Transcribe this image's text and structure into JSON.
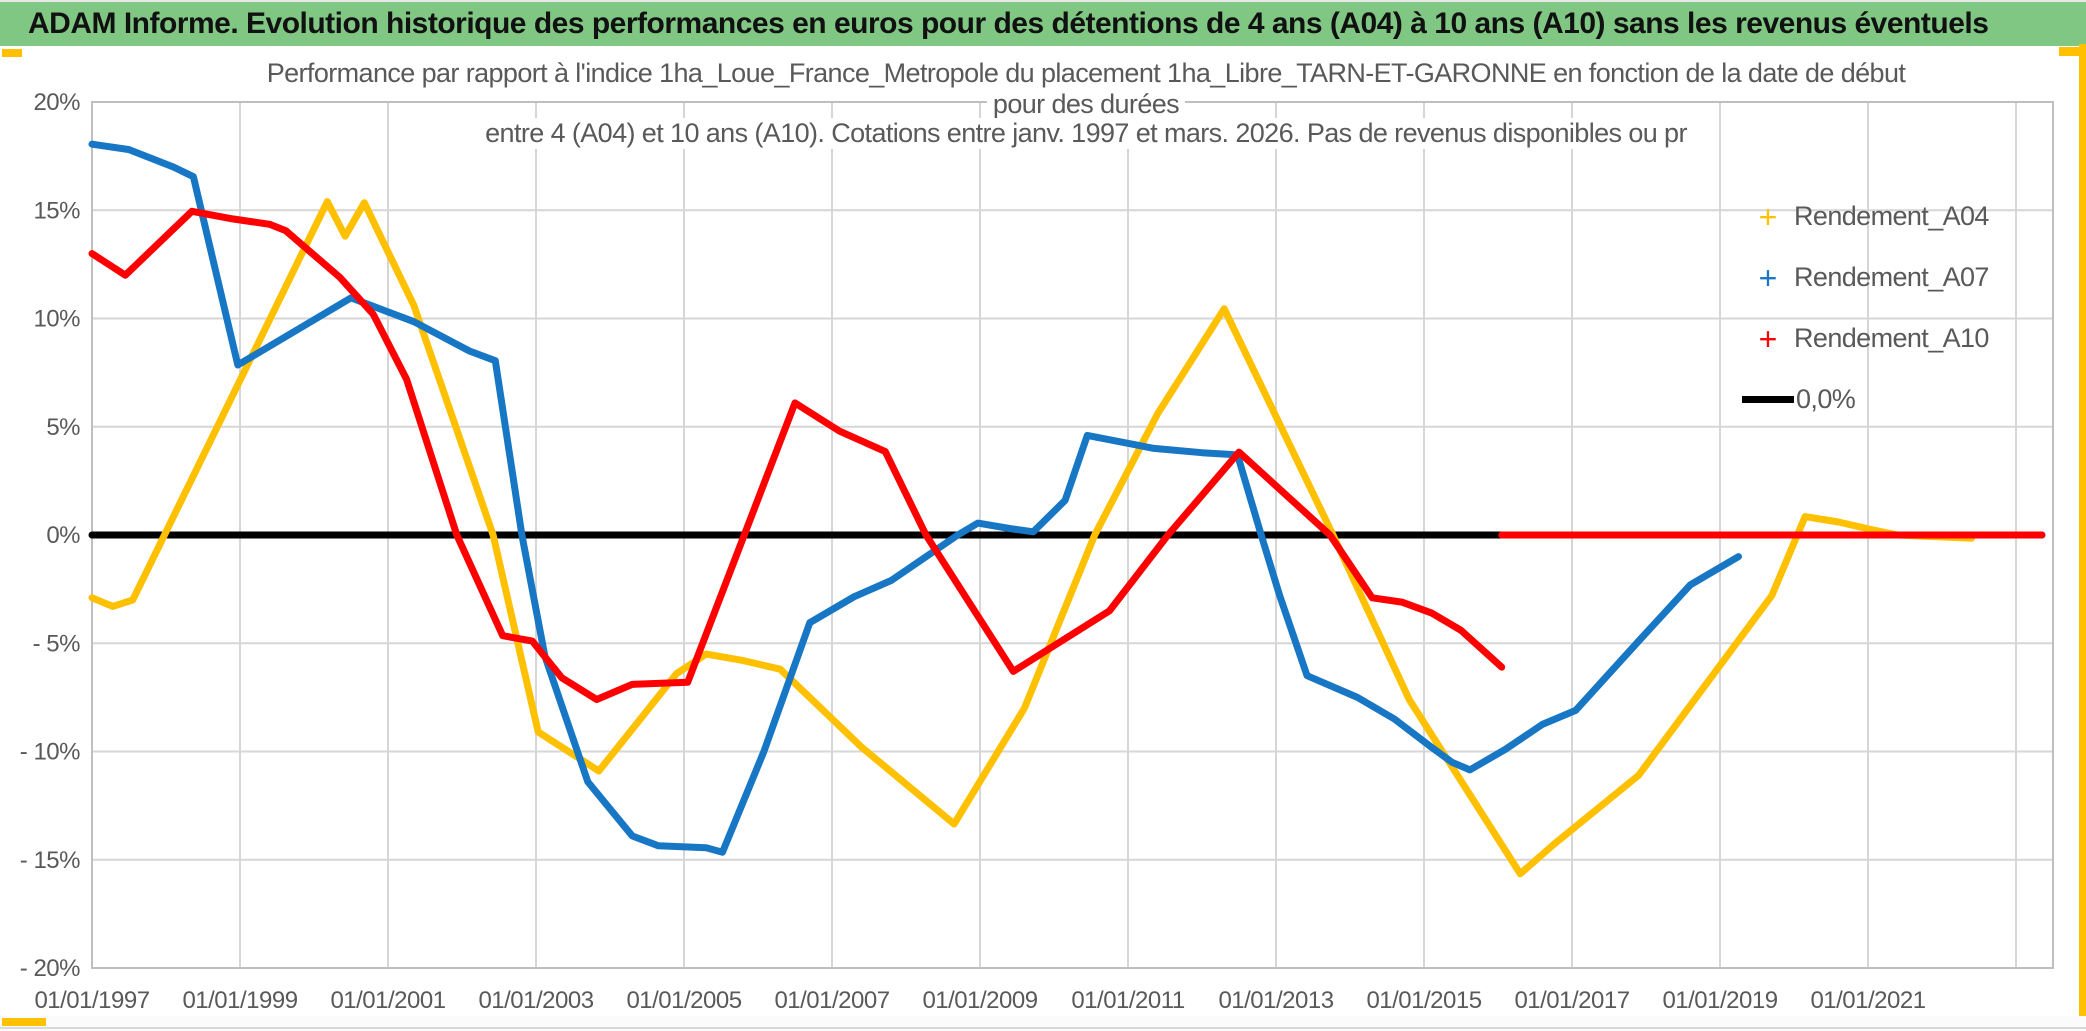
{
  "header": {
    "title": "ADAM Informe. Evolution historique des performances en euros pour des détentions de 4 ans (A04) à 10 ans (A10) sans les revenus éventuels",
    "bg_color": "#81C784",
    "text_color": "#111111"
  },
  "frame": {
    "accent_color": "#FFC000",
    "bottom_line_color": "#D9D9D9"
  },
  "chart": {
    "title_lines": [
      "Performance par rapport à l'indice 1ha_Loue_France_Metropole  du placement 1ha_Libre_TARN-ET-GARONNE en fonction de la date de début",
      "pour des durées",
      "entre 4 (A04) et 10 ans (A10). Cotations entre janv. 1997 et mars. 2026. Pas de revenus disponibles ou pr"
    ],
    "text_color": "#595959",
    "gridline_color": "#D6D6D6",
    "border_color": "#BFBFBF"
  },
  "chart_data": {
    "type": "line",
    "title": "Performance par rapport à l'indice 1ha_Loue_France_Metropole du placement 1ha_Libre_TARN-ET-GARONNE en fonction de la date de début pour des durées entre 4 (A04) et 10 ans (A10). Cotations entre janv. 1997 et mars. 2026. Pas de revenus disponibles ou pr",
    "xlabel": "",
    "ylabel": "",
    "grid": true,
    "legend_position": "right",
    "x_axis": {
      "unit": "decimal_year_start_date",
      "range": [
        1997.0,
        2023.5
      ],
      "tick_years": [
        1997,
        1999,
        2001,
        2003,
        2005,
        2007,
        2009,
        2011,
        2013,
        2015,
        2017,
        2019,
        2021
      ],
      "tick_labels": [
        "01/01/1997",
        "01/01/1999",
        "01/01/2001",
        "01/01/2003",
        "01/01/2005",
        "01/01/2007",
        "01/01/2009",
        "01/01/2011",
        "01/01/2013",
        "01/01/2015",
        "01/01/2017",
        "01/01/2019",
        "01/01/2021"
      ],
      "gridline_years": [
        1999,
        2001,
        2003,
        2005,
        2007,
        2009,
        2011,
        2013,
        2015,
        2017,
        2019,
        2021,
        2023
      ]
    },
    "y_axis": {
      "unit": "%",
      "range": [
        -20,
        20
      ],
      "tick_values": [
        20,
        15,
        10,
        5,
        0,
        -5,
        -10,
        -15,
        -20
      ],
      "tick_labels": [
        "20%",
        "15%",
        "10%",
        "5%",
        "0%",
        "- 5%",
        "- 10%",
        "- 15%",
        "- 20%"
      ]
    },
    "series": [
      {
        "name": "Rendement_A04",
        "color": "#FFC000",
        "marker": "plus",
        "segments": [
          [
            [
              1997.0,
              -2.9
            ],
            [
              1997.28,
              -3.3
            ],
            [
              1997.55,
              -3.0
            ],
            [
              2000.18,
              15.4
            ],
            [
              2000.42,
              13.8
            ],
            [
              2000.68,
              15.35
            ],
            [
              2001.35,
              10.6
            ],
            [
              2002.42,
              0.0
            ],
            [
              2003.03,
              -9.1
            ],
            [
              2003.85,
              -10.9
            ],
            [
              2004.9,
              -6.4
            ],
            [
              2005.3,
              -5.5
            ],
            [
              2005.8,
              -5.8
            ],
            [
              2006.3,
              -6.2
            ],
            [
              2007.4,
              -9.8
            ],
            [
              2008.65,
              -13.35
            ],
            [
              2009.6,
              -8.0
            ],
            [
              2010.55,
              0.0
            ],
            [
              2011.4,
              5.6
            ],
            [
              2012.3,
              10.45
            ],
            [
              2013.77,
              0.0
            ],
            [
              2014.8,
              -7.6
            ],
            [
              2016.3,
              -15.65
            ],
            [
              2016.75,
              -14.3
            ],
            [
              2017.9,
              -11.1
            ],
            [
              2019.2,
              -5.1
            ],
            [
              2019.7,
              -2.8
            ],
            [
              2020.15,
              0.85
            ],
            [
              2020.6,
              0.6
            ],
            [
              2021.05,
              0.25
            ],
            [
              2021.4,
              0.0
            ],
            [
              2022.4,
              -0.15
            ]
          ]
        ]
      },
      {
        "name": "Rendement_A07",
        "color": "#1777C4",
        "marker": "plus",
        "segments": [
          [
            [
              1997.0,
              18.05
            ],
            [
              1997.5,
              17.8
            ],
            [
              1998.1,
              17.0
            ],
            [
              1998.37,
              16.55
            ],
            [
              1998.97,
              7.85
            ],
            [
              2000.5,
              10.95
            ],
            [
              2001.35,
              9.85
            ],
            [
              2002.1,
              8.5
            ],
            [
              2002.45,
              8.05
            ],
            [
              2002.81,
              0.0
            ],
            [
              2003.12,
              -5.6
            ],
            [
              2003.7,
              -11.4
            ],
            [
              2004.3,
              -13.9
            ],
            [
              2004.65,
              -14.35
            ],
            [
              2005.3,
              -14.45
            ],
            [
              2005.52,
              -14.65
            ],
            [
              2006.08,
              -10.0
            ],
            [
              2006.7,
              -4.05
            ],
            [
              2007.3,
              -2.85
            ],
            [
              2007.8,
              -2.1
            ],
            [
              2008.7,
              0.0
            ],
            [
              2008.97,
              0.55
            ],
            [
              2009.4,
              0.3
            ],
            [
              2009.72,
              0.15
            ],
            [
              2010.15,
              1.6
            ],
            [
              2010.45,
              4.6
            ],
            [
              2011.35,
              4.0
            ],
            [
              2012.0,
              3.8
            ],
            [
              2012.48,
              3.7
            ],
            [
              2012.8,
              0.0
            ],
            [
              2013.05,
              -2.8
            ],
            [
              2013.42,
              -6.5
            ],
            [
              2014.1,
              -7.5
            ],
            [
              2014.6,
              -8.5
            ],
            [
              2015.1,
              -9.8
            ],
            [
              2015.38,
              -10.5
            ],
            [
              2015.62,
              -10.85
            ],
            [
              2016.1,
              -9.9
            ],
            [
              2016.6,
              -8.75
            ],
            [
              2017.05,
              -8.1
            ],
            [
              2017.9,
              -4.9
            ],
            [
              2018.6,
              -2.3
            ],
            [
              2019.25,
              -1.0
            ]
          ]
        ]
      },
      {
        "name": "Rendement_A10",
        "color": "#FF0000",
        "marker": "plus",
        "segments": [
          [
            [
              1997.0,
              13.0
            ],
            [
              1997.45,
              12.0
            ],
            [
              1998.35,
              14.95
            ],
            [
              1998.9,
              14.6
            ],
            [
              1999.4,
              14.35
            ],
            [
              1999.62,
              14.05
            ],
            [
              2000.35,
              11.9
            ],
            [
              2000.8,
              10.2
            ],
            [
              2001.25,
              7.2
            ],
            [
              2001.93,
              0.0
            ],
            [
              2002.55,
              -4.65
            ],
            [
              2002.95,
              -4.9
            ],
            [
              2003.35,
              -6.6
            ],
            [
              2003.82,
              -7.6
            ],
            [
              2004.3,
              -6.9
            ],
            [
              2005.05,
              -6.8
            ],
            [
              2006.5,
              6.1
            ],
            [
              2007.1,
              4.8
            ],
            [
              2007.72,
              3.85
            ],
            [
              2008.27,
              0.0
            ],
            [
              2009.45,
              -6.3
            ],
            [
              2010.1,
              -4.9
            ],
            [
              2010.75,
              -3.5
            ],
            [
              2011.54,
              0.0
            ],
            [
              2012.5,
              3.83
            ],
            [
              2013.73,
              0.0
            ],
            [
              2014.3,
              -2.9
            ],
            [
              2014.7,
              -3.1
            ],
            [
              2015.1,
              -3.6
            ],
            [
              2015.5,
              -4.4
            ],
            [
              2016.05,
              -6.1
            ]
          ],
          [
            [
              2016.05,
              0.0
            ],
            [
              2023.35,
              0.0
            ]
          ]
        ]
      },
      {
        "name": "0,0%",
        "color": "#000000",
        "marker": "line",
        "reference": true,
        "segments": [
          [
            [
              1997.0,
              0.0
            ],
            [
              2023.35,
              0.0
            ]
          ]
        ]
      }
    ]
  }
}
